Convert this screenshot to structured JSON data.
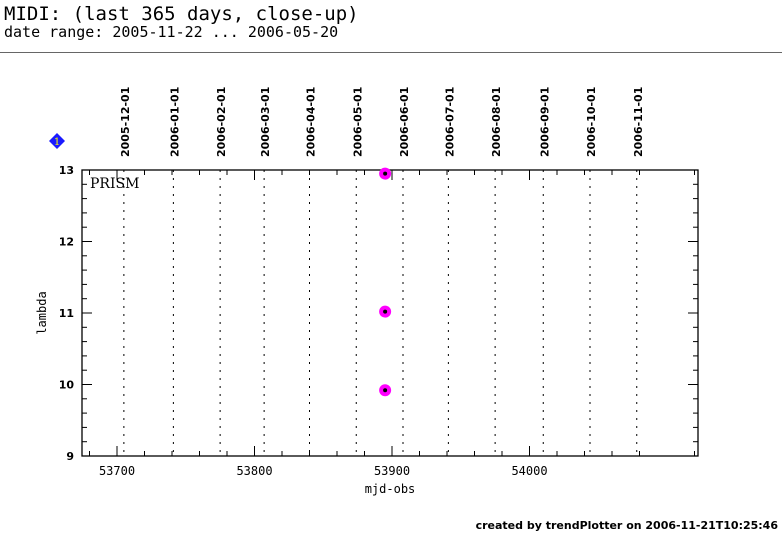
{
  "header": {
    "title": "MIDI: (last 365 days, close-up)",
    "subtitle": "date range: 2005-11-22 ... 2006-05-20"
  },
  "footer": "created by trendPlotter on 2006-11-21T10:25:46",
  "marker_label": "1",
  "chart_data": {
    "type": "scatter",
    "xlabel": "mjd-obs",
    "ylabel": "lambda",
    "xlim": [
      53675,
      54125
    ],
    "ylim": [
      9,
      13
    ],
    "xticks": [
      53700,
      53800,
      53900,
      54000
    ],
    "yticks": [
      9,
      10,
      11,
      12,
      13
    ],
    "annotation": "PRISM",
    "date_lines": [
      {
        "label": "2005-12-01",
        "mjd": 53705
      },
      {
        "label": "2006-01-01",
        "mjd": 53741
      },
      {
        "label": "2006-02-01",
        "mjd": 53775
      },
      {
        "label": "2006-03-01",
        "mjd": 53807
      },
      {
        "label": "2006-04-01",
        "mjd": 53840
      },
      {
        "label": "2006-05-01",
        "mjd": 53874
      },
      {
        "label": "2006-06-01",
        "mjd": 53908
      },
      {
        "label": "2006-07-01",
        "mjd": 53941
      },
      {
        "label": "2006-08-01",
        "mjd": 53975
      },
      {
        "label": "2006-09-01",
        "mjd": 54010
      },
      {
        "label": "2006-10-01",
        "mjd": 54044
      },
      {
        "label": "2006-11-01",
        "mjd": 54078
      }
    ],
    "points": [
      {
        "x": 53895,
        "y": 12.95
      },
      {
        "x": 53895,
        "y": 11.02
      },
      {
        "x": 53895,
        "y": 9.92
      }
    ],
    "point_color": "#ff00ff"
  }
}
